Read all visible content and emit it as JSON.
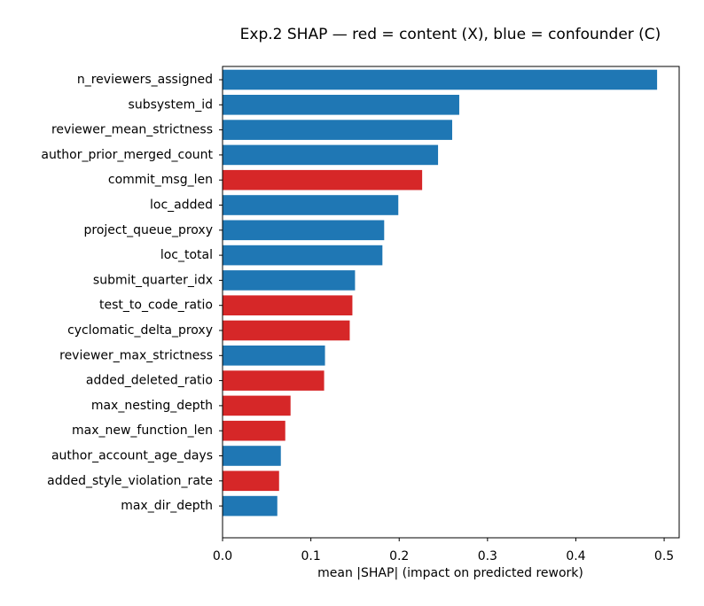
{
  "chart_data": {
    "type": "bar",
    "orientation": "horizontal",
    "title": "Exp.2 SHAP — red = content (X), blue = confounder (C)",
    "xlabel": "mean |SHAP| (impact on predicted rework)",
    "ylabel": "",
    "xlim": [
      0,
      0.517
    ],
    "xticks": [
      "0.0",
      "0.1",
      "0.2",
      "0.3",
      "0.4",
      "0.5"
    ],
    "xtick_values": [
      0,
      0.1,
      0.2,
      0.3,
      0.4,
      0.5
    ],
    "grid": false,
    "colors": {
      "content": "#d62728",
      "confounder": "#1f77b4"
    },
    "categories": [
      "n_reviewers_assigned",
      "subsystem_id",
      "reviewer_mean_strictness",
      "author_prior_merged_count",
      "commit_msg_len",
      "loc_added",
      "project_queue_proxy",
      "loc_total",
      "submit_quarter_idx",
      "test_to_code_ratio",
      "cyclomatic_delta_proxy",
      "reviewer_max_strictness",
      "added_deleted_ratio",
      "max_nesting_depth",
      "max_new_function_len",
      "author_account_age_days",
      "added_style_violation_rate",
      "max_dir_depth"
    ],
    "values": [
      0.492,
      0.268,
      0.26,
      0.244,
      0.226,
      0.199,
      0.183,
      0.181,
      0.15,
      0.147,
      0.144,
      0.116,
      0.115,
      0.077,
      0.071,
      0.066,
      0.064,
      0.062
    ],
    "groups": [
      "confounder",
      "confounder",
      "confounder",
      "confounder",
      "content",
      "confounder",
      "confounder",
      "confounder",
      "confounder",
      "content",
      "content",
      "confounder",
      "content",
      "content",
      "content",
      "confounder",
      "content",
      "confounder"
    ]
  }
}
